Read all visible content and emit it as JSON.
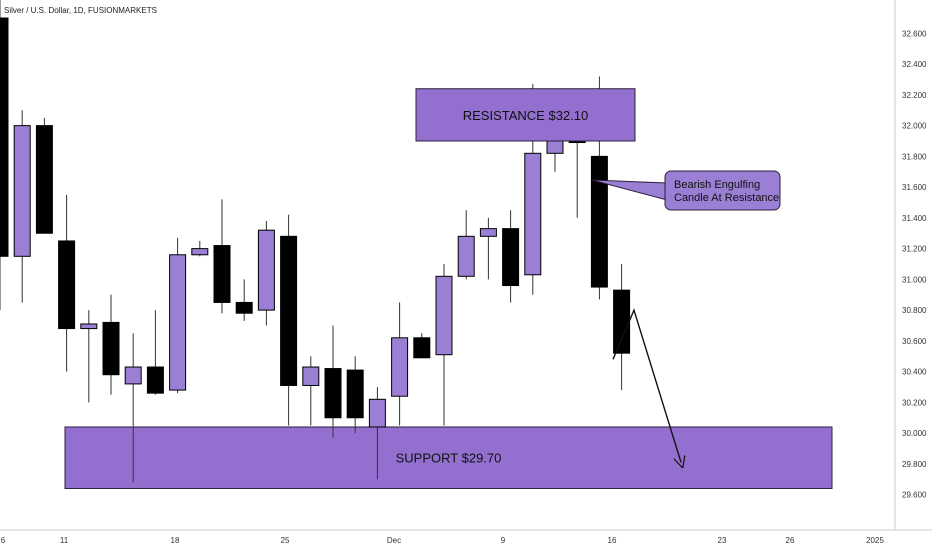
{
  "title": "Silver / U.S. Dollar, 1D, FUSIONMARKETS",
  "colors": {
    "bull_fill": "#9b7fd4",
    "bear_fill": "#000000",
    "zone_fill": "#9370cf",
    "zone_border": "#2b1f3d",
    "note_fill": "#9b7fd4",
    "wick": "#333333"
  },
  "chart_data": {
    "type": "candlestick",
    "title": "Silver / U.S. Dollar, 1D, FUSIONMARKETS",
    "ylim": [
      29.5,
      32.7
    ],
    "y_ticks": [
      "32.600",
      "32.400",
      "32.200",
      "32.000",
      "31.800",
      "31.600",
      "31.400",
      "31.200",
      "31.000",
      "30.800",
      "30.600",
      "30.400",
      "30.200",
      "30.000",
      "29.800",
      "29.600"
    ],
    "x_ticks": [
      "6",
      "11",
      "18",
      "25",
      "Dec",
      "9",
      "16",
      "23",
      "26",
      "2025"
    ],
    "candles": [
      {
        "o": 32.7,
        "h": 32.85,
        "l": 30.8,
        "c": 31.15
      },
      {
        "o": 31.15,
        "h": 32.1,
        "l": 30.85,
        "c": 32.0
      },
      {
        "o": 32.0,
        "h": 32.05,
        "l": 31.3,
        "c": 31.3
      },
      {
        "o": 31.25,
        "h": 31.55,
        "l": 30.4,
        "c": 30.68
      },
      {
        "o": 30.68,
        "h": 30.8,
        "l": 30.2,
        "c": 30.71
      },
      {
        "o": 30.72,
        "h": 30.9,
        "l": 30.25,
        "c": 30.38
      },
      {
        "o": 30.32,
        "h": 30.65,
        "l": 29.68,
        "c": 30.43
      },
      {
        "o": 30.43,
        "h": 30.8,
        "l": 30.25,
        "c": 30.26
      },
      {
        "o": 30.28,
        "h": 31.27,
        "l": 30.26,
        "c": 31.16
      },
      {
        "o": 31.16,
        "h": 31.25,
        "l": 31.15,
        "c": 31.2
      },
      {
        "o": 31.22,
        "h": 31.52,
        "l": 30.78,
        "c": 30.85
      },
      {
        "o": 30.85,
        "h": 31.0,
        "l": 30.73,
        "c": 30.78
      },
      {
        "o": 30.8,
        "h": 31.38,
        "l": 30.7,
        "c": 31.32
      },
      {
        "o": 31.28,
        "h": 31.42,
        "l": 30.05,
        "c": 30.31
      },
      {
        "o": 30.31,
        "h": 30.5,
        "l": 30.05,
        "c": 30.43
      },
      {
        "o": 30.42,
        "h": 30.7,
        "l": 29.97,
        "c": 30.1
      },
      {
        "o": 30.41,
        "h": 30.5,
        "l": 30.0,
        "c": 30.1
      },
      {
        "o": 30.04,
        "h": 30.3,
        "l": 29.7,
        "c": 30.22
      },
      {
        "o": 30.24,
        "h": 30.85,
        "l": 30.05,
        "c": 30.62
      },
      {
        "o": 30.62,
        "h": 30.65,
        "l": 30.49,
        "c": 30.49
      },
      {
        "o": 30.51,
        "h": 31.1,
        "l": 30.05,
        "c": 31.02
      },
      {
        "o": 31.02,
        "h": 31.45,
        "l": 31.0,
        "c": 31.28
      },
      {
        "o": 31.28,
        "h": 31.4,
        "l": 31.0,
        "c": 31.33
      },
      {
        "o": 31.33,
        "h": 31.45,
        "l": 30.85,
        "c": 30.96
      },
      {
        "o": 31.03,
        "h": 32.27,
        "l": 30.9,
        "c": 31.82
      },
      {
        "o": 31.82,
        "h": 31.98,
        "l": 31.7,
        "c": 31.9
      },
      {
        "o": 31.93,
        "h": 32.2,
        "l": 31.4,
        "c": 31.89
      },
      {
        "o": 31.8,
        "h": 32.32,
        "l": 30.87,
        "c": 30.95
      },
      {
        "o": 30.93,
        "h": 31.1,
        "l": 30.28,
        "c": 30.52
      }
    ],
    "zones": [
      {
        "label": "RESISTANCE $32.10",
        "top": 32.24,
        "bottom": 31.9
      },
      {
        "label": "SUPPORT $29.70",
        "top": 30.04,
        "bottom": 29.64
      }
    ],
    "annotation": {
      "lines": [
        "Bearish Engulfing",
        "Candle At Resistance"
      ]
    },
    "projection": [
      30.48,
      30.8,
      29.81
    ]
  }
}
